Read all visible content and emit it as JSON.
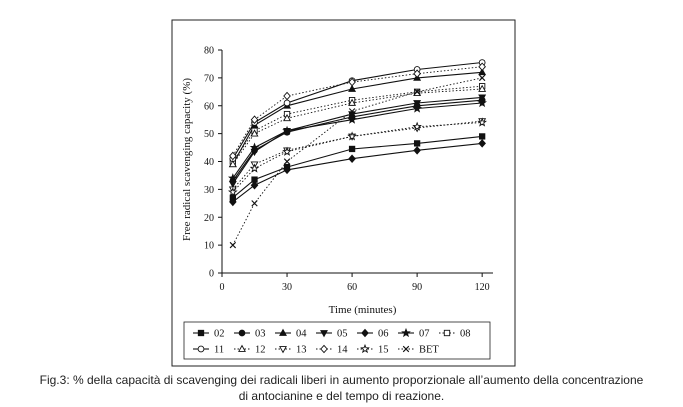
{
  "chart_data": {
    "type": "line",
    "title": "",
    "xlabel": "Time (minutes)",
    "ylabel": "Free radical scavenging capacity (%)",
    "xlim": [
      0,
      125
    ],
    "ylim": [
      0,
      80
    ],
    "xticks": [
      0,
      30,
      60,
      90,
      120
    ],
    "yticks": [
      0,
      10,
      20,
      30,
      40,
      50,
      60,
      70,
      80
    ],
    "xtick_labels": [
      "0",
      "30",
      "60",
      "90",
      "120"
    ],
    "ytick_labels": [
      "0",
      "10",
      "20",
      "30",
      "40",
      "50",
      "60",
      "70",
      "80"
    ],
    "grid": false,
    "legend_position": "bottom",
    "x": [
      5,
      15,
      30,
      60,
      90,
      120
    ],
    "series": [
      {
        "name": "02",
        "marker": "square",
        "dash": "solid",
        "values": [
          27,
          33.5,
          38,
          44.5,
          46.5,
          49
        ]
      },
      {
        "name": "03",
        "marker": "circle-filled",
        "dash": "solid",
        "values": [
          33,
          44,
          50.5,
          56,
          60,
          62
        ]
      },
      {
        "name": "04",
        "marker": "triangle-up-filled",
        "dash": "solid",
        "values": [
          39,
          53,
          60,
          66,
          70,
          72
        ]
      },
      {
        "name": "05",
        "marker": "triangle-down-filled",
        "dash": "solid",
        "values": [
          32,
          43.5,
          51,
          57,
          61,
          63
        ]
      },
      {
        "name": "06",
        "marker": "diamond-filled",
        "dash": "solid",
        "values": [
          25.5,
          31.5,
          37,
          41,
          44,
          46.5
        ]
      },
      {
        "name": "07",
        "marker": "star-filled",
        "dash": "solid",
        "values": [
          34,
          45,
          51,
          55,
          59,
          61
        ]
      },
      {
        "name": "08",
        "marker": "square-open",
        "dash": "dotted",
        "values": [
          40,
          51,
          57,
          62,
          65,
          67
        ]
      },
      {
        "name": "11",
        "marker": "circle-open",
        "dash": "solid",
        "values": [
          41,
          54,
          61,
          69,
          73,
          75.5
        ]
      },
      {
        "name": "12",
        "marker": "triangle-up-open",
        "dash": "dotted",
        "values": [
          39,
          50,
          55.5,
          61,
          64.5,
          66
        ]
      },
      {
        "name": "13",
        "marker": "triangle-down-open",
        "dash": "dotted",
        "values": [
          30,
          39,
          44,
          49,
          52,
          54.5
        ]
      },
      {
        "name": "14",
        "marker": "diamond-open",
        "dash": "dotted",
        "values": [
          42,
          55,
          63.5,
          68.5,
          71.5,
          74
        ]
      },
      {
        "name": "15",
        "marker": "star-open",
        "dash": "dotted",
        "values": [
          29,
          37.5,
          43.5,
          49,
          52.5,
          54
        ]
      },
      {
        "name": "BET",
        "marker": "x",
        "dash": "dotted",
        "values": [
          10,
          25,
          40,
          58,
          65,
          70
        ]
      }
    ]
  },
  "caption": {
    "line1": "Fig.3: % della capacità di scavenging dei radicali liberi in aumento proporzionale all’aumento della concentrazione",
    "line2": "di antocianine e del tempo di reazione."
  },
  "colors": {
    "ink": "#111111",
    "background": "#ffffff"
  }
}
